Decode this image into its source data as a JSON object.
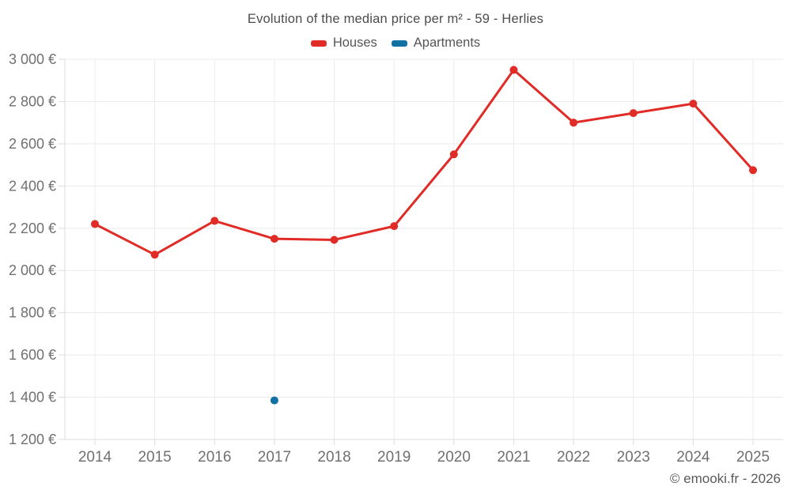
{
  "chart_data": {
    "type": "line",
    "title": "Evolution of the median price per m² - 59 - Herlies",
    "categories": [
      "2014",
      "2015",
      "2016",
      "2017",
      "2018",
      "2019",
      "2020",
      "2021",
      "2022",
      "2023",
      "2024",
      "2025"
    ],
    "series": [
      {
        "name": "Houses",
        "color": "#e02b26",
        "values": [
          2220,
          2075,
          2235,
          2150,
          2145,
          2210,
          2550,
          2950,
          2700,
          2745,
          2790,
          2475
        ]
      },
      {
        "name": "Apartments",
        "color": "#1271a3",
        "values": [
          null,
          null,
          null,
          1385,
          null,
          null,
          null,
          null,
          null,
          null,
          null,
          null
        ]
      }
    ],
    "ylim": [
      1200,
      3000
    ],
    "ytick_step": 200,
    "yticks": [
      "3 000 €",
      "2 800 €",
      "2 600 €",
      "2 400 €",
      "2 200 €",
      "2 000 €",
      "1 800 €",
      "1 600 €",
      "1 400 €",
      "1 200 €"
    ],
    "xlabel": "",
    "ylabel": "",
    "currency": "€",
    "grid": true,
    "legend_position": "top"
  },
  "footer": {
    "copyright": "© emooki.fr - 2026"
  }
}
